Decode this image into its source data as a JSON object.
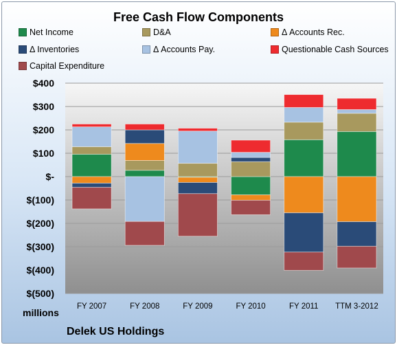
{
  "chart_data": {
    "type": "bar",
    "stacked": true,
    "title": "Free Cash Flow Components",
    "ylabel": "millions",
    "subtitle": "Delek US Holdings",
    "categories": [
      "FY 2007",
      "FY 2008",
      "FY 2009",
      "FY 2010",
      "FY 2011",
      "TTM 3-2012"
    ],
    "ylim": [
      -500,
      400
    ],
    "yticks": [
      400,
      300,
      200,
      100,
      0,
      -100,
      -200,
      -300,
      -400,
      -500
    ],
    "ytick_labels": [
      "$400",
      "$300",
      "$200",
      "$100",
      "$-",
      "$(100)",
      "$(200)",
      "$(300)",
      "$(400)",
      "$(500)"
    ],
    "grid": true,
    "legend_position": "top",
    "series": [
      {
        "name": "Net Income",
        "color": "#1e8a4c",
        "values": [
          96,
          27,
          -3,
          -78,
          158,
          193
        ]
      },
      {
        "name": "D&A",
        "color": "#a8995e",
        "values": [
          32,
          42,
          57,
          64,
          75,
          78
        ]
      },
      {
        "name": "Δ Accounts Rec.",
        "color": "#ee8a1d",
        "values": [
          -28,
          73,
          -22,
          -23,
          -155,
          -193
        ]
      },
      {
        "name": "Δ Inventories",
        "color": "#2a4b78",
        "values": [
          -18,
          58,
          -48,
          18,
          -168,
          -105
        ]
      },
      {
        "name": "Δ Accounts Pay.",
        "color": "#a7c2e2",
        "values": [
          85,
          -192,
          138,
          22,
          63,
          16
        ]
      },
      {
        "name": "Questionable Cash Sources",
        "color": "#ee2b2f",
        "values": [
          12,
          25,
          12,
          52,
          55,
          48
        ]
      },
      {
        "name": "Capital Expenditure",
        "color": "#a0494c",
        "values": [
          -92,
          -102,
          -182,
          -62,
          -78,
          -93
        ]
      }
    ]
  }
}
